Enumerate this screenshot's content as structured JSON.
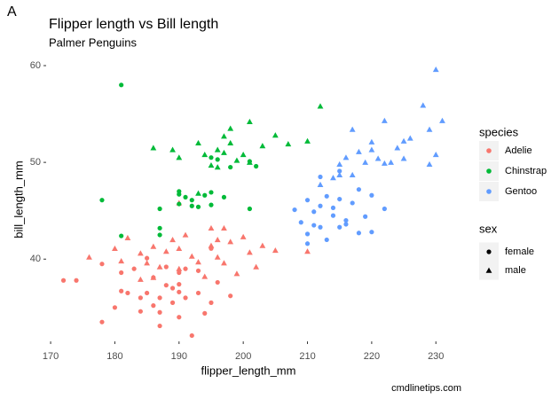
{
  "panel_label": "A",
  "caption": "cmdlinetips.com",
  "chart_data": {
    "type": "scatter",
    "title": "Flipper length vs Bill length",
    "subtitle": "Palmer Penguins",
    "x_label": "flipper_length_mm",
    "y_label": "bill_length_mm",
    "xlim": [
      169.3,
      231.9
    ],
    "ylim": [
      31.5,
      61.1
    ],
    "xticks": [
      170,
      180,
      190,
      200,
      210,
      220,
      230
    ],
    "yticks": [
      40,
      50,
      60
    ],
    "grid": false,
    "color_legend": {
      "title": "species",
      "items": [
        {
          "name": "Adelie",
          "color": "#f8766d"
        },
        {
          "name": "Chinstrap",
          "color": "#00ba38"
        },
        {
          "name": "Gentoo",
          "color": "#619cff"
        }
      ]
    },
    "shape_legend": {
      "title": "sex",
      "items": [
        {
          "name": "female",
          "shape": "circle"
        },
        {
          "name": "male",
          "shape": "triangle"
        }
      ]
    },
    "series": [
      {
        "color": "#f8766d",
        "shape": "circle",
        "x": [
          172,
          174,
          178,
          180,
          181,
          182,
          183,
          184,
          184,
          185,
          186,
          186,
          187,
          187,
          188,
          189,
          189,
          190,
          190,
          190,
          191,
          191,
          192,
          193,
          193,
          194,
          195,
          195,
          196,
          198,
          178,
          185,
          188,
          190,
          187,
          181
        ],
        "values": [
          37.8,
          37.8,
          33.5,
          35.0,
          38.6,
          36.5,
          39.0,
          34.6,
          36.0,
          36.5,
          38.1,
          35.2,
          36.0,
          34.5,
          37.3,
          37.0,
          35.5,
          38.6,
          36.6,
          34.0,
          36.0,
          39.0,
          32.1,
          36.5,
          38.8,
          34.4,
          41.1,
          35.5,
          37.6,
          36.2,
          39.5,
          40.1,
          39.2,
          37.4,
          33.1,
          36.7
        ]
      },
      {
        "color": "#f8766d",
        "shape": "triangle",
        "x": [
          176,
          180,
          181,
          182,
          184,
          185,
          186,
          187,
          188,
          189,
          190,
          190,
          191,
          192,
          193,
          195,
          195,
          196,
          196,
          197,
          197,
          198,
          199,
          200,
          201,
          202,
          203,
          205,
          210,
          190,
          184,
          186,
          194
        ],
        "values": [
          40.2,
          41.1,
          39.8,
          42.2,
          40.6,
          39.6,
          41.3,
          39.2,
          40.8,
          42.0,
          41.1,
          39.0,
          42.5,
          40.3,
          39.7,
          43.2,
          41.4,
          42.0,
          40.2,
          43.2,
          39.6,
          41.8,
          38.5,
          42.3,
          40.7,
          39.2,
          41.4,
          40.9,
          40.8,
          45.8,
          37.9,
          38.1,
          38.2
        ]
      },
      {
        "color": "#00ba38",
        "shape": "circle",
        "x": [
          178,
          181,
          187,
          187,
          190,
          190,
          191,
          192,
          192,
          193,
          194,
          195,
          195,
          196,
          197,
          198,
          201,
          202,
          201,
          181,
          195,
          187,
          190
        ],
        "values": [
          46.1,
          42.4,
          45.2,
          43.2,
          46.7,
          45.7,
          46.4,
          45.5,
          46.1,
          45.4,
          46.6,
          50.5,
          45.6,
          50.3,
          46.4,
          49.5,
          50.1,
          49.6,
          45.2,
          58.0,
          46.9,
          42.5,
          47.0
        ]
      },
      {
        "color": "#00ba38",
        "shape": "triangle",
        "x": [
          186,
          189,
          190,
          193,
          194,
          195,
          196,
          197,
          197,
          198,
          199,
          200,
          201,
          203,
          205,
          207,
          210,
          212,
          201,
          198,
          193,
          196
        ],
        "values": [
          51.5,
          51.3,
          50.5,
          52.0,
          50.8,
          49.7,
          51.3,
          52.7,
          51.0,
          53.5,
          50.2,
          50.8,
          54.2,
          51.7,
          52.8,
          51.9,
          52.2,
          55.8,
          50.0,
          52.0,
          46.8,
          49.5
        ]
      },
      {
        "color": "#619cff",
        "shape": "circle",
        "x": [
          208,
          209,
          210,
          210,
          211,
          212,
          212,
          213,
          213,
          214,
          214,
          215,
          215,
          216,
          217,
          218,
          218,
          219,
          220,
          222,
          210,
          211,
          212,
          215,
          216,
          220
        ],
        "values": [
          45.1,
          43.8,
          46.1,
          42.6,
          44.9,
          45.5,
          43.3,
          46.5,
          42.0,
          44.5,
          45.3,
          43.3,
          46.2,
          44.0,
          45.8,
          42.7,
          47.2,
          44.4,
          46.6,
          45.2,
          41.6,
          43.5,
          48.5,
          49.1,
          43.6,
          42.8
        ]
      },
      {
        "color": "#619cff",
        "shape": "triangle",
        "x": [
          214,
          215,
          216,
          217,
          218,
          219,
          220,
          221,
          222,
          222,
          223,
          224,
          225,
          225,
          226,
          228,
          229,
          229,
          230,
          230,
          231,
          212,
          215,
          217,
          220
        ],
        "values": [
          48.4,
          49.8,
          50.5,
          48.7,
          51.1,
          50.0,
          52.1,
          50.4,
          49.9,
          54.3,
          50.0,
          51.5,
          52.2,
          50.4,
          52.5,
          55.9,
          53.4,
          49.8,
          59.6,
          50.8,
          54.3,
          47.7,
          48.7,
          53.4,
          51.3
        ]
      }
    ]
  }
}
